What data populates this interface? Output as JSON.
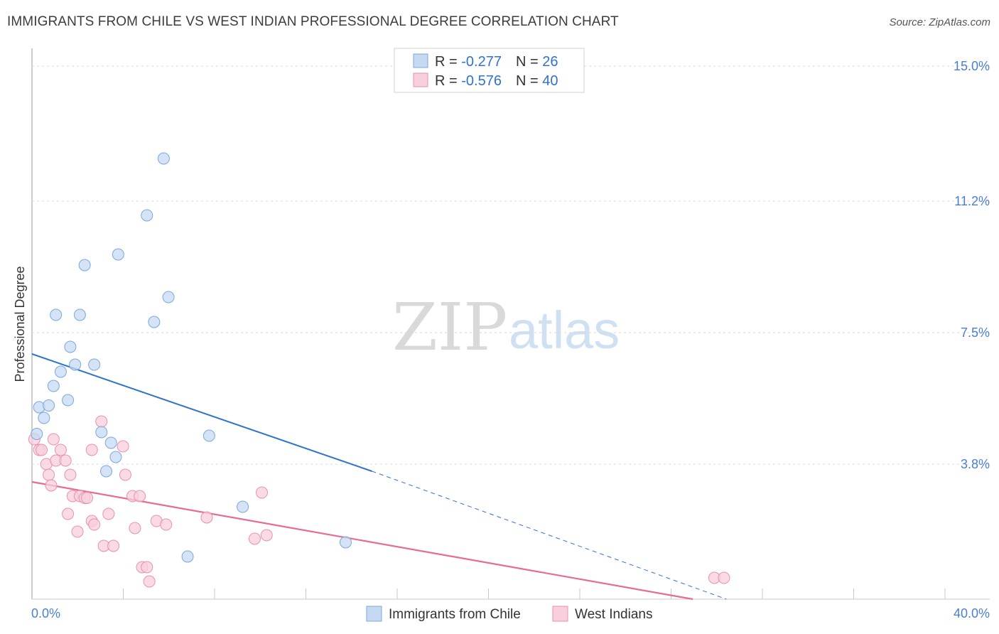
{
  "title": "IMMIGRANTS FROM CHILE VS WEST INDIAN PROFESSIONAL DEGREE CORRELATION CHART",
  "source": "Source: ZipAtlas.com",
  "watermark": {
    "zip": "ZIP",
    "atlas": "atlas"
  },
  "colors": {
    "blue_fill": "#c5d9f3",
    "blue_stroke": "#7ba7dc",
    "blue_line": "#2f72cf",
    "pink_fill": "#f8cfdc",
    "pink_stroke": "#e891ad",
    "pink_line": "#e56b95",
    "tick_text": "#4a7fd0",
    "grid": "#d9d9d9"
  },
  "legend": {
    "rows": [
      {
        "r_label": "R = ",
        "r_value": "-0.277",
        "n_label": "N = ",
        "n_value": "26"
      },
      {
        "r_label": "R = ",
        "r_value": "-0.576",
        "n_label": "N = ",
        "n_value": "40"
      }
    ]
  },
  "bottom_legend": {
    "series_a": "Immigrants from Chile",
    "series_b": "West Indians"
  },
  "chart_data": {
    "type": "scatter",
    "title": "IMMIGRANTS FROM CHILE VS WEST INDIAN PROFESSIONAL DEGREE CORRELATION CHART",
    "xlabel": "",
    "ylabel": "Professional Degree",
    "xlim": [
      0,
      40
    ],
    "ylim": [
      0,
      15.5
    ],
    "x_tick_labels": [
      "0.0%",
      "40.0%"
    ],
    "y_ticks": [
      3.8,
      7.5,
      11.2,
      15.0
    ],
    "y_tick_labels": [
      "3.8%",
      "7.5%",
      "11.2%",
      "15.0%"
    ],
    "grid": true,
    "series": [
      {
        "name": "Immigrants from Chile",
        "color": "blue",
        "R": -0.277,
        "N": 26,
        "points": [
          [
            0.2,
            4.65
          ],
          [
            0.3,
            5.4
          ],
          [
            0.5,
            5.1
          ],
          [
            0.7,
            5.45
          ],
          [
            0.9,
            6.0
          ],
          [
            1.0,
            8.0
          ],
          [
            1.2,
            6.4
          ],
          [
            1.5,
            5.6
          ],
          [
            1.6,
            7.1
          ],
          [
            1.8,
            6.6
          ],
          [
            2.0,
            8.0
          ],
          [
            2.2,
            9.4
          ],
          [
            2.6,
            6.6
          ],
          [
            2.9,
            4.7
          ],
          [
            3.1,
            3.6
          ],
          [
            3.3,
            4.4
          ],
          [
            3.5,
            4.0
          ],
          [
            3.6,
            9.7
          ],
          [
            4.8,
            10.8
          ],
          [
            5.1,
            7.8
          ],
          [
            5.5,
            12.4
          ],
          [
            5.7,
            8.5
          ],
          [
            6.5,
            1.2
          ],
          [
            7.4,
            4.6
          ],
          [
            8.8,
            2.6
          ],
          [
            13.1,
            1.6
          ]
        ],
        "trend": {
          "x0": 0,
          "y0": 6.9,
          "x1": 14.2,
          "y1": 3.6,
          "dashed_to_x": 29,
          "dashed_to_y": 0
        }
      },
      {
        "name": "West Indians",
        "color": "pink",
        "R": -0.576,
        "N": 40,
        "points": [
          [
            0.1,
            4.5
          ],
          [
            0.3,
            4.2
          ],
          [
            0.4,
            4.2
          ],
          [
            0.6,
            3.8
          ],
          [
            0.7,
            3.5
          ],
          [
            0.8,
            3.2
          ],
          [
            0.9,
            4.5
          ],
          [
            1.0,
            3.9
          ],
          [
            1.2,
            4.2
          ],
          [
            1.4,
            3.9
          ],
          [
            1.5,
            2.4
          ],
          [
            1.6,
            3.5
          ],
          [
            1.7,
            2.9
          ],
          [
            1.9,
            1.9
          ],
          [
            2.0,
            2.9
          ],
          [
            2.2,
            2.85
          ],
          [
            2.3,
            2.85
          ],
          [
            2.5,
            4.2
          ],
          [
            2.5,
            2.2
          ],
          [
            2.6,
            2.1
          ],
          [
            2.9,
            5.0
          ],
          [
            3.0,
            1.5
          ],
          [
            3.2,
            2.4
          ],
          [
            3.4,
            1.5
          ],
          [
            3.8,
            4.3
          ],
          [
            3.9,
            3.5
          ],
          [
            4.2,
            2.9
          ],
          [
            4.3,
            2.0
          ],
          [
            4.5,
            2.9
          ],
          [
            4.6,
            0.9
          ],
          [
            4.8,
            0.9
          ],
          [
            4.9,
            0.5
          ],
          [
            5.2,
            2.2
          ],
          [
            5.6,
            2.1
          ],
          [
            7.3,
            2.3
          ],
          [
            9.3,
            1.7
          ],
          [
            9.6,
            3.0
          ],
          [
            9.8,
            1.8
          ],
          [
            28.5,
            0.6
          ],
          [
            28.9,
            0.6
          ]
        ],
        "trend": {
          "x0": 0,
          "y0": 3.3,
          "x1": 27.6,
          "y1": 0
        }
      }
    ]
  }
}
